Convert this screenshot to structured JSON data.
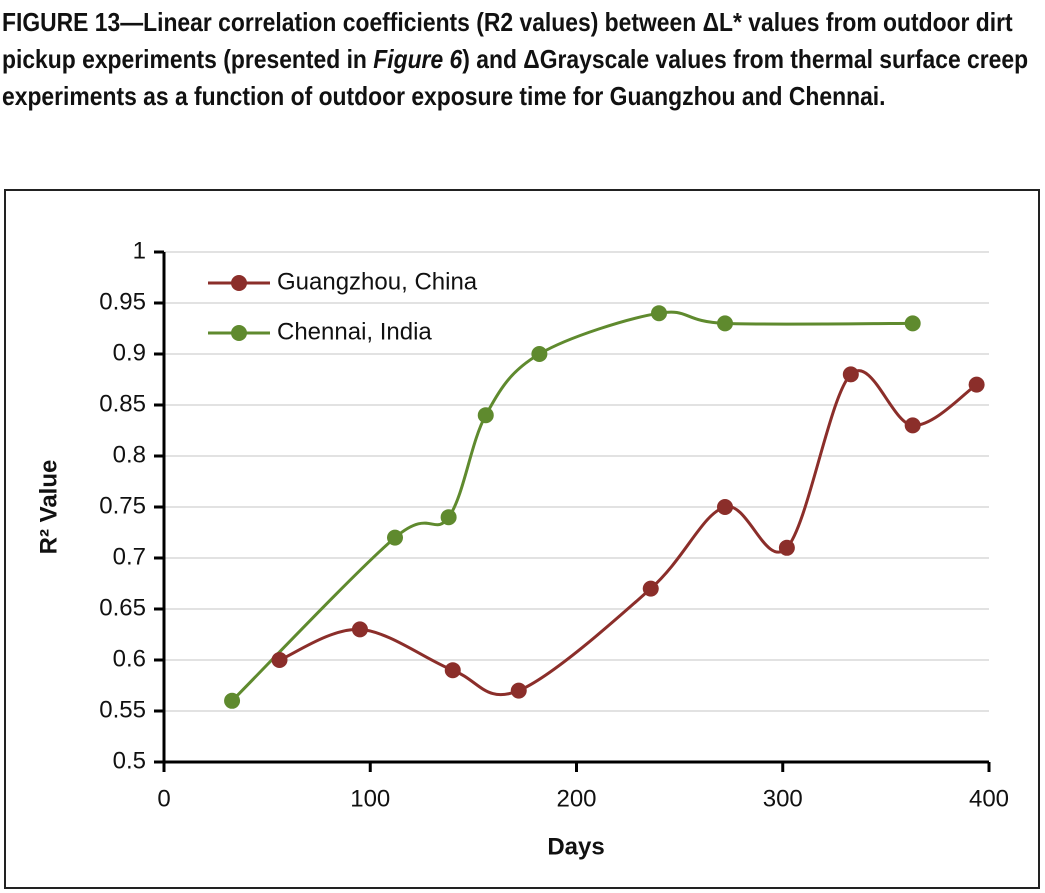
{
  "chart_data": {
    "type": "line",
    "title": [
      "FIGURE 13—Linear correlation coefficients (R2 values) between ΔL* values from outdoor dirt pickup experiments (presented in ",
      "Figure 6",
      ") and ΔGrayscale values from thermal surface creep experiments as a function of outdoor exposure time for Guangzhou and Chennai."
    ],
    "x_label": "Days",
    "y_label": "R² Value",
    "xlim": [
      0,
      400
    ],
    "xticks": [
      0,
      100,
      200,
      300,
      400
    ],
    "ylim": [
      0.5,
      1
    ],
    "yticks": [
      0.5,
      0.55,
      0.6,
      0.65,
      0.7,
      0.75,
      0.8,
      0.85,
      0.9,
      0.95,
      1
    ],
    "grid": true,
    "legend": "upper left",
    "smooth": true,
    "series": [
      {
        "name": "Guangzhou, China",
        "color": "#8b2e2a",
        "x": [
          56,
          95,
          140,
          172,
          236,
          272,
          302,
          333,
          363,
          394
        ],
        "values": [
          0.6,
          0.63,
          0.59,
          0.57,
          0.67,
          0.75,
          0.71,
          0.88,
          0.83,
          0.87
        ]
      },
      {
        "name": "Chennai, India",
        "color": "#5f8a2e",
        "x": [
          33,
          112,
          138,
          156,
          182,
          240,
          272,
          363
        ],
        "values": [
          0.56,
          0.72,
          0.74,
          0.84,
          0.9,
          0.94,
          0.93,
          0.93
        ]
      }
    ]
  }
}
